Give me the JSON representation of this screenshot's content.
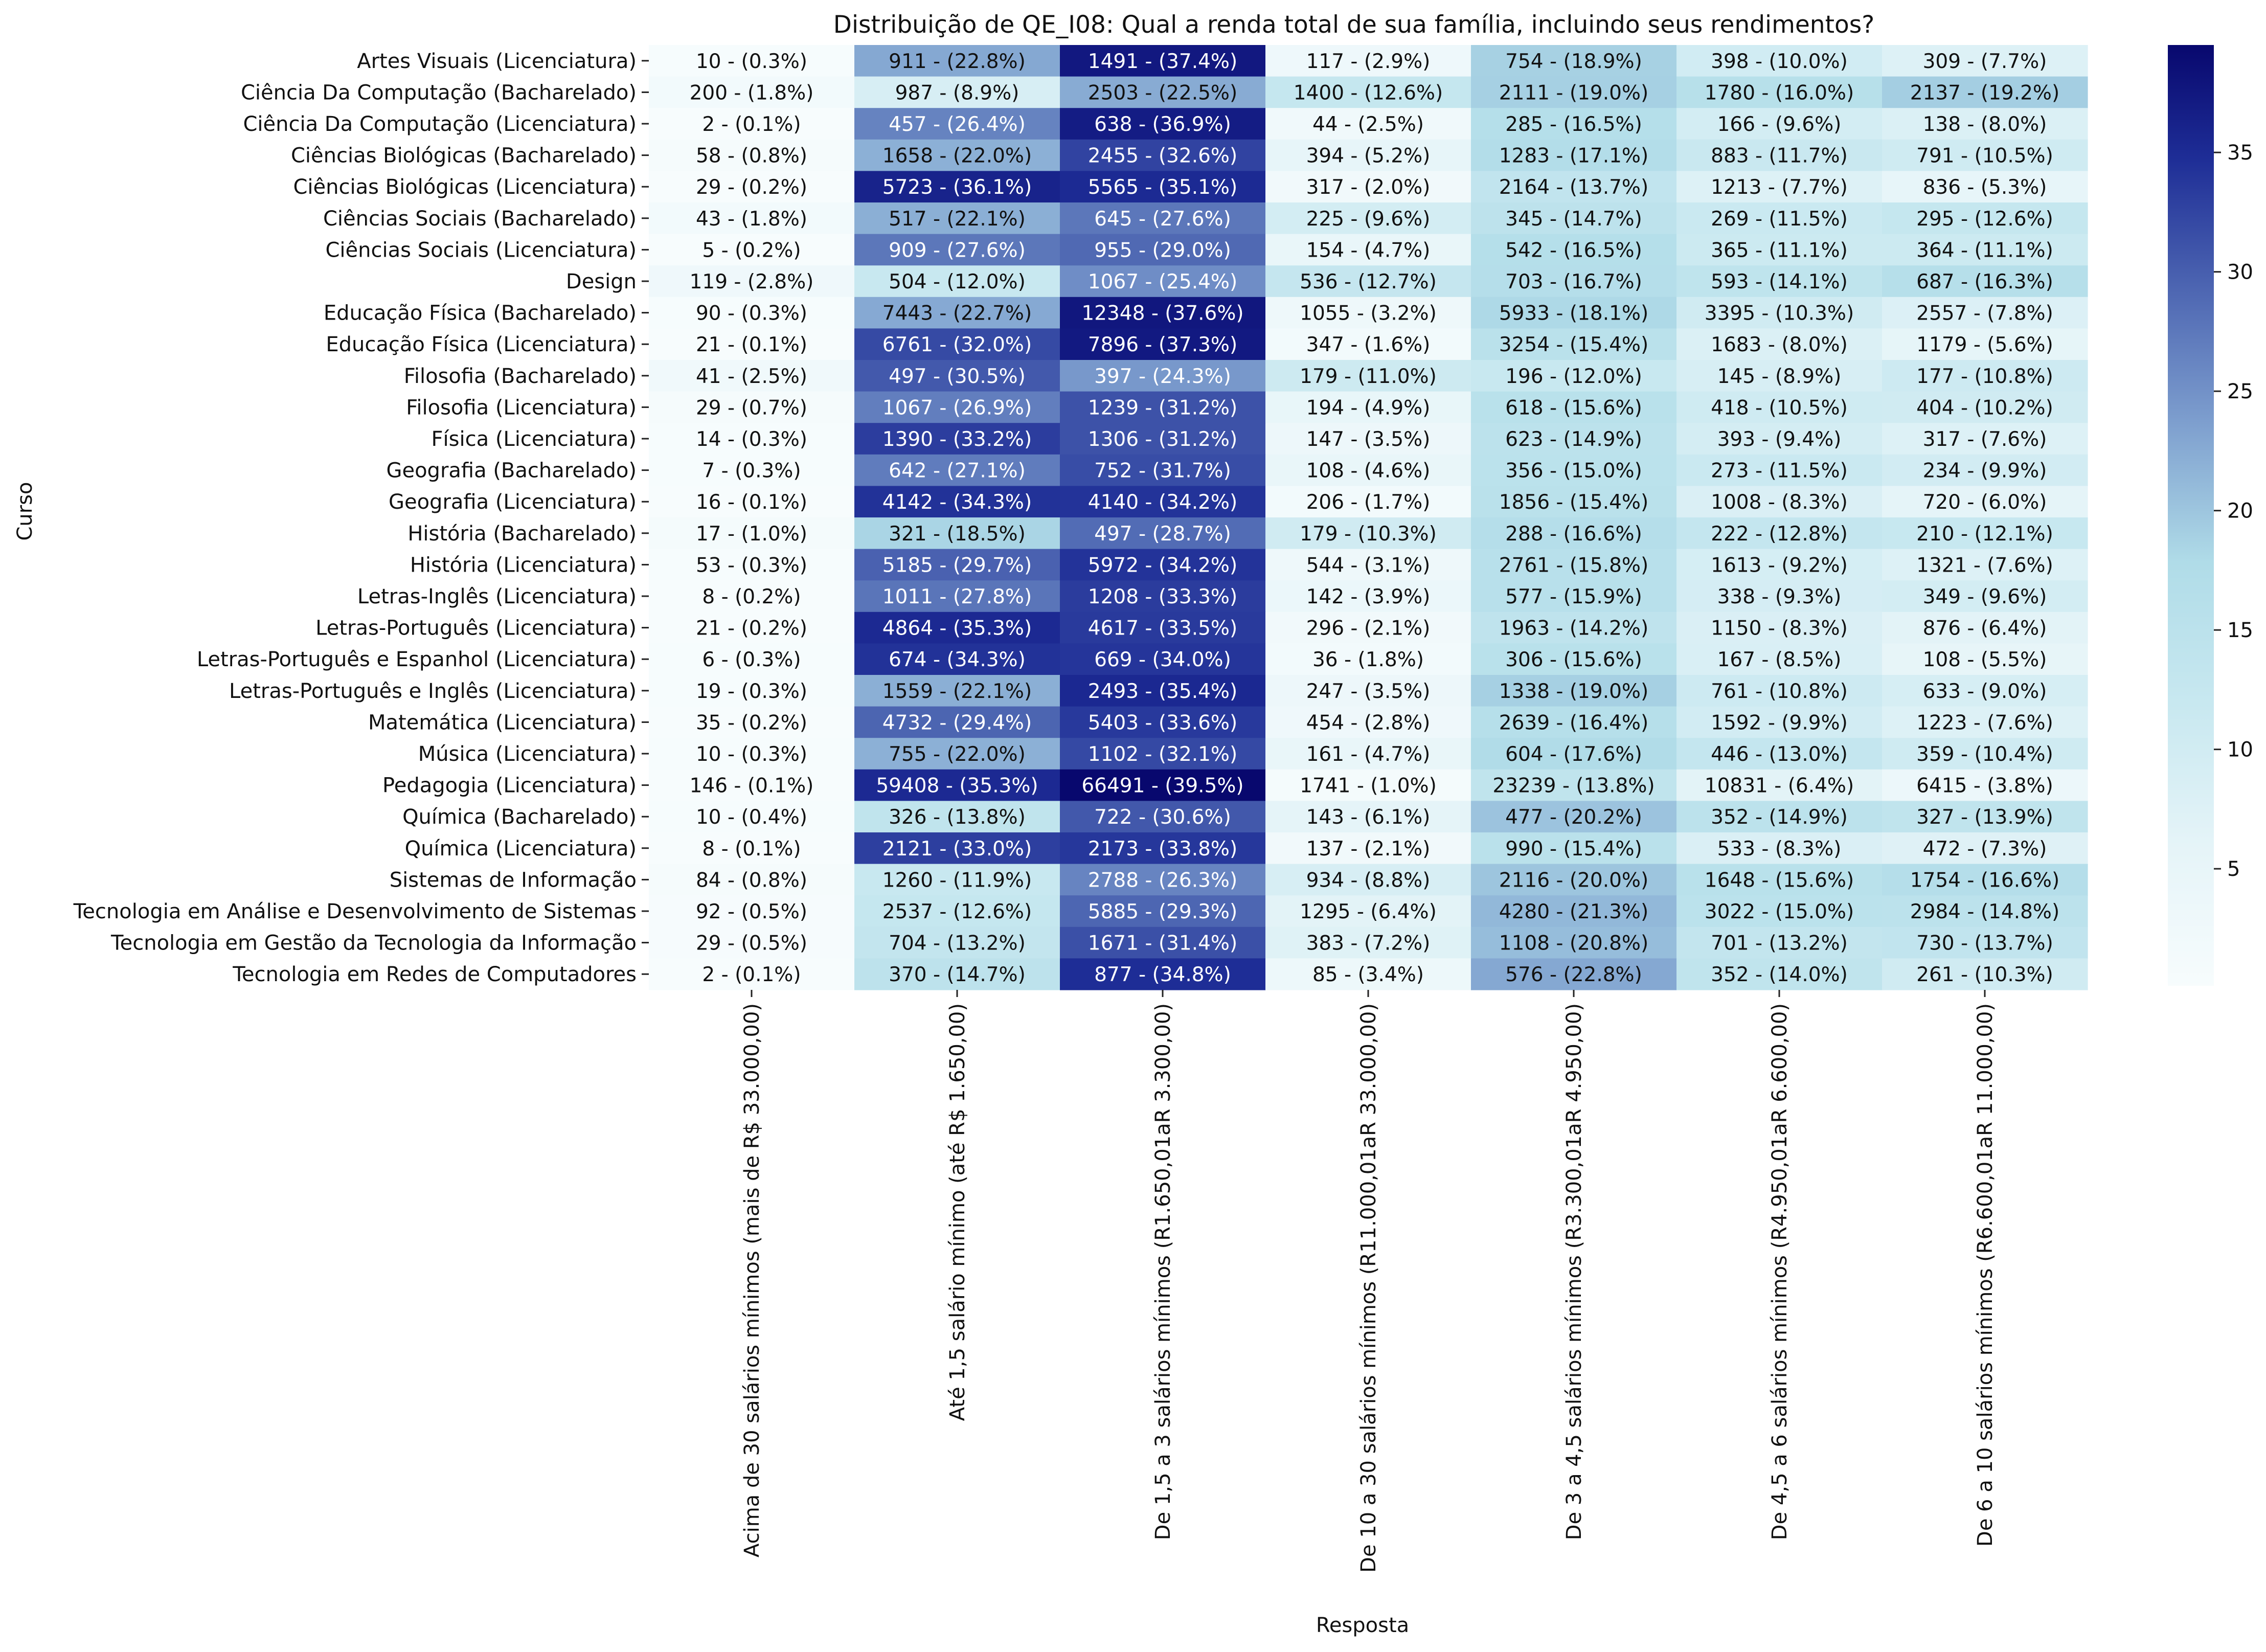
{
  "chart_data": {
    "type": "heatmap",
    "title": "Distribuição de QE_I08: Qual a renda total de sua família, incluindo seus rendimentos?",
    "xlabel": "Resposta",
    "ylabel": "Curso",
    "columns": [
      "Acima de 30 salários mínimos (mais de R$ 33.000,00)",
      "Até 1,5 salário mínimo (até R$ 1.650,00)",
      "De 1,5 a 3 salários mínimos (R1.650,01aR 3.300,00)",
      "De 10 a 30 salários mínimos (R11.000,01aR 33.000,00)",
      "De 3 a 4,5 salários mínimos (R3.300,01aR 4.950,00)",
      "De 4,5 a 6 salários mínimos (R4.950,01aR 6.600,00)",
      "De 6 a 10 salários mínimos (R6.600,01aR 11.000,00)"
    ],
    "rows": [
      "Artes Visuais (Licenciatura)",
      "Ciência Da Computação (Bacharelado)",
      "Ciência Da Computação (Licenciatura)",
      "Ciências Biológicas (Bacharelado)",
      "Ciências Biológicas (Licenciatura)",
      "Ciências Sociais (Bacharelado)",
      "Ciências Sociais (Licenciatura)",
      "Design",
      "Educação Física (Bacharelado)",
      "Educação Física (Licenciatura)",
      "Filosofia (Bacharelado)",
      "Filosofia (Licenciatura)",
      "Física (Licenciatura)",
      "Geografia (Bacharelado)",
      "Geografia (Licenciatura)",
      "História (Bacharelado)",
      "História (Licenciatura)",
      "Letras-Inglês (Licenciatura)",
      "Letras-Português (Licenciatura)",
      "Letras-Português e Espanhol (Licenciatura)",
      "Letras-Português e Inglês (Licenciatura)",
      "Matemática (Licenciatura)",
      "Música (Licenciatura)",
      "Pedagogia (Licenciatura)",
      "Química (Bacharelado)",
      "Química (Licenciatura)",
      "Sistemas de Informação",
      "Tecnologia em Análise e Desenvolvimento de Sistemas",
      "Tecnologia em Gestão da Tecnologia da Informação",
      "Tecnologia em Redes de Computadores"
    ],
    "percent": [
      [
        0.3,
        22.8,
        37.4,
        2.9,
        18.9,
        10.0,
        7.7
      ],
      [
        1.8,
        8.9,
        22.5,
        12.6,
        19.0,
        16.0,
        19.2
      ],
      [
        0.1,
        26.4,
        36.9,
        2.5,
        16.5,
        9.6,
        8.0
      ],
      [
        0.8,
        22.0,
        32.6,
        5.2,
        17.1,
        11.7,
        10.5
      ],
      [
        0.2,
        36.1,
        35.1,
        2.0,
        13.7,
        7.7,
        5.3
      ],
      [
        1.8,
        22.1,
        27.6,
        9.6,
        14.7,
        11.5,
        12.6
      ],
      [
        0.2,
        27.6,
        29.0,
        4.7,
        16.5,
        11.1,
        11.1
      ],
      [
        2.8,
        12.0,
        25.4,
        12.7,
        16.7,
        14.1,
        16.3
      ],
      [
        0.3,
        22.7,
        37.6,
        3.2,
        18.1,
        10.3,
        7.8
      ],
      [
        0.1,
        32.0,
        37.3,
        1.6,
        15.4,
        8.0,
        5.6
      ],
      [
        2.5,
        30.5,
        24.3,
        11.0,
        12.0,
        8.9,
        10.8
      ],
      [
        0.7,
        26.9,
        31.2,
        4.9,
        15.6,
        10.5,
        10.2
      ],
      [
        0.3,
        33.2,
        31.2,
        3.5,
        14.9,
        9.4,
        7.6
      ],
      [
        0.3,
        27.1,
        31.7,
        4.6,
        15.0,
        11.5,
        9.9
      ],
      [
        0.1,
        34.3,
        34.2,
        1.7,
        15.4,
        8.3,
        6.0
      ],
      [
        1.0,
        18.5,
        28.7,
        10.3,
        16.6,
        12.8,
        12.1
      ],
      [
        0.3,
        29.7,
        34.2,
        3.1,
        15.8,
        9.2,
        7.6
      ],
      [
        0.2,
        27.8,
        33.3,
        3.9,
        15.9,
        9.3,
        9.6
      ],
      [
        0.2,
        35.3,
        33.5,
        2.1,
        14.2,
        8.3,
        6.4
      ],
      [
        0.3,
        34.3,
        34.0,
        1.8,
        15.6,
        8.5,
        5.5
      ],
      [
        0.3,
        22.1,
        35.4,
        3.5,
        19.0,
        10.8,
        9.0
      ],
      [
        0.2,
        29.4,
        33.6,
        2.8,
        16.4,
        9.9,
        7.6
      ],
      [
        0.3,
        22.0,
        32.1,
        4.7,
        17.6,
        13.0,
        10.4
      ],
      [
        0.1,
        35.3,
        39.5,
        1.0,
        13.8,
        6.4,
        3.8
      ],
      [
        0.4,
        13.8,
        30.6,
        6.1,
        20.2,
        14.9,
        13.9
      ],
      [
        0.1,
        33.0,
        33.8,
        2.1,
        15.4,
        8.3,
        7.3
      ],
      [
        0.8,
        11.9,
        26.3,
        8.8,
        20.0,
        15.6,
        16.6
      ],
      [
        0.5,
        12.6,
        29.3,
        6.4,
        21.3,
        15.0,
        14.8
      ],
      [
        0.5,
        13.2,
        31.4,
        7.2,
        20.8,
        13.2,
        13.7
      ],
      [
        0.1,
        14.7,
        34.8,
        3.4,
        22.8,
        14.0,
        10.3
      ]
    ],
    "labels": [
      [
        "10 - (0.3%)",
        "911 - (22.8%)",
        "1491 - (37.4%)",
        "117 - (2.9%)",
        "754 - (18.9%)",
        "398 - (10.0%)",
        "309 - (7.7%)"
      ],
      [
        "200 - (1.8%)",
        "987 - (8.9%)",
        "2503 - (22.5%)",
        "1400 - (12.6%)",
        "2111 - (19.0%)",
        "1780 - (16.0%)",
        "2137 - (19.2%)"
      ],
      [
        "2 - (0.1%)",
        "457 - (26.4%)",
        "638 - (36.9%)",
        "44 - (2.5%)",
        "285 - (16.5%)",
        "166 - (9.6%)",
        "138 - (8.0%)"
      ],
      [
        "58 - (0.8%)",
        "1658 - (22.0%)",
        "2455 - (32.6%)",
        "394 - (5.2%)",
        "1283 - (17.1%)",
        "883 - (11.7%)",
        "791 - (10.5%)"
      ],
      [
        "29 - (0.2%)",
        "5723 - (36.1%)",
        "5565 - (35.1%)",
        "317 - (2.0%)",
        "2164 - (13.7%)",
        "1213 - (7.7%)",
        "836 - (5.3%)"
      ],
      [
        "43 - (1.8%)",
        "517 - (22.1%)",
        "645 - (27.6%)",
        "225 - (9.6%)",
        "345 - (14.7%)",
        "269 - (11.5%)",
        "295 - (12.6%)"
      ],
      [
        "5 - (0.2%)",
        "909 - (27.6%)",
        "955 - (29.0%)",
        "154 - (4.7%)",
        "542 - (16.5%)",
        "365 - (11.1%)",
        "364 - (11.1%)"
      ],
      [
        "119 - (2.8%)",
        "504 - (12.0%)",
        "1067 - (25.4%)",
        "536 - (12.7%)",
        "703 - (16.7%)",
        "593 - (14.1%)",
        "687 - (16.3%)"
      ],
      [
        "90 - (0.3%)",
        "7443 - (22.7%)",
        "12348 - (37.6%)",
        "1055 - (3.2%)",
        "5933 - (18.1%)",
        "3395 - (10.3%)",
        "2557 - (7.8%)"
      ],
      [
        "21 - (0.1%)",
        "6761 - (32.0%)",
        "7896 - (37.3%)",
        "347 - (1.6%)",
        "3254 - (15.4%)",
        "1683 - (8.0%)",
        "1179 - (5.6%)"
      ],
      [
        "41 - (2.5%)",
        "497 - (30.5%)",
        "397 - (24.3%)",
        "179 - (11.0%)",
        "196 - (12.0%)",
        "145 - (8.9%)",
        "177 - (10.8%)"
      ],
      [
        "29 - (0.7%)",
        "1067 - (26.9%)",
        "1239 - (31.2%)",
        "194 - (4.9%)",
        "618 - (15.6%)",
        "418 - (10.5%)",
        "404 - (10.2%)"
      ],
      [
        "14 - (0.3%)",
        "1390 - (33.2%)",
        "1306 - (31.2%)",
        "147 - (3.5%)",
        "623 - (14.9%)",
        "393 - (9.4%)",
        "317 - (7.6%)"
      ],
      [
        "7 - (0.3%)",
        "642 - (27.1%)",
        "752 - (31.7%)",
        "108 - (4.6%)",
        "356 - (15.0%)",
        "273 - (11.5%)",
        "234 - (9.9%)"
      ],
      [
        "16 - (0.1%)",
        "4142 - (34.3%)",
        "4140 - (34.2%)",
        "206 - (1.7%)",
        "1856 - (15.4%)",
        "1008 - (8.3%)",
        "720 - (6.0%)"
      ],
      [
        "17 - (1.0%)",
        "321 - (18.5%)",
        "497 - (28.7%)",
        "179 - (10.3%)",
        "288 - (16.6%)",
        "222 - (12.8%)",
        "210 - (12.1%)"
      ],
      [
        "53 - (0.3%)",
        "5185 - (29.7%)",
        "5972 - (34.2%)",
        "544 - (3.1%)",
        "2761 - (15.8%)",
        "1613 - (9.2%)",
        "1321 - (7.6%)"
      ],
      [
        "8 - (0.2%)",
        "1011 - (27.8%)",
        "1208 - (33.3%)",
        "142 - (3.9%)",
        "577 - (15.9%)",
        "338 - (9.3%)",
        "349 - (9.6%)"
      ],
      [
        "21 - (0.2%)",
        "4864 - (35.3%)",
        "4617 - (33.5%)",
        "296 - (2.1%)",
        "1963 - (14.2%)",
        "1150 - (8.3%)",
        "876 - (6.4%)"
      ],
      [
        "6 - (0.3%)",
        "674 - (34.3%)",
        "669 - (34.0%)",
        "36 - (1.8%)",
        "306 - (15.6%)",
        "167 - (8.5%)",
        "108 - (5.5%)"
      ],
      [
        "19 - (0.3%)",
        "1559 - (22.1%)",
        "2493 - (35.4%)",
        "247 - (3.5%)",
        "1338 - (19.0%)",
        "761 - (10.8%)",
        "633 - (9.0%)"
      ],
      [
        "35 - (0.2%)",
        "4732 - (29.4%)",
        "5403 - (33.6%)",
        "454 - (2.8%)",
        "2639 - (16.4%)",
        "1592 - (9.9%)",
        "1223 - (7.6%)"
      ],
      [
        "10 - (0.3%)",
        "755 - (22.0%)",
        "1102 - (32.1%)",
        "161 - (4.7%)",
        "604 - (17.6%)",
        "446 - (13.0%)",
        "359 - (10.4%)"
      ],
      [
        "146 - (0.1%)",
        "59408 - (35.3%)",
        "66491 - (39.5%)",
        "1741 - (1.0%)",
        "23239 - (13.8%)",
        "10831 - (6.4%)",
        "6415 - (3.8%)"
      ],
      [
        "10 - (0.4%)",
        "326 - (13.8%)",
        "722 - (30.6%)",
        "143 - (6.1%)",
        "477 - (20.2%)",
        "352 - (14.9%)",
        "327 - (13.9%)"
      ],
      [
        "8 - (0.1%)",
        "2121 - (33.0%)",
        "2173 - (33.8%)",
        "137 - (2.1%)",
        "990 - (15.4%)",
        "533 - (8.3%)",
        "472 - (7.3%)"
      ],
      [
        "84 - (0.8%)",
        "1260 - (11.9%)",
        "2788 - (26.3%)",
        "934 - (8.8%)",
        "2116 - (20.0%)",
        "1648 - (15.6%)",
        "1754 - (16.6%)"
      ],
      [
        "92 - (0.5%)",
        "2537 - (12.6%)",
        "5885 - (29.3%)",
        "1295 - (6.4%)",
        "4280 - (21.3%)",
        "3022 - (15.0%)",
        "2984 - (14.8%)"
      ],
      [
        "29 - (0.5%)",
        "704 - (13.2%)",
        "1671 - (31.4%)",
        "383 - (7.2%)",
        "1108 - (20.8%)",
        "701 - (13.2%)",
        "730 - (13.7%)"
      ],
      [
        "2 - (0.1%)",
        "370 - (14.7%)",
        "877 - (34.8%)",
        "85 - (3.4%)",
        "576 - (22.8%)",
        "352 - (14.0%)",
        "261 - (10.3%)"
      ]
    ],
    "colorbar": {
      "min": 0.1,
      "max": 39.5,
      "ticks": [
        "5",
        "10",
        "15",
        "20",
        "25",
        "30",
        "35"
      ],
      "colormap": "white-lightblue-steelblue-navy"
    },
    "grid": false,
    "legend": "colorbar-right"
  }
}
